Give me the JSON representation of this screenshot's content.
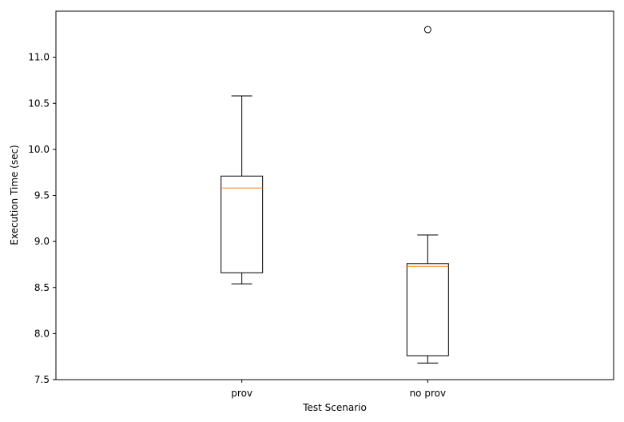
{
  "chart_data": {
    "type": "boxplot",
    "xlabel": "Test Scenario",
    "ylabel": "Execution Time (sec)",
    "ylim": [
      7.5,
      11.5
    ],
    "yticks": [
      "7.5",
      "8.0",
      "8.5",
      "9.0",
      "9.5",
      "10.0",
      "10.5",
      "11.0"
    ],
    "ytick_values": [
      7.5,
      8.0,
      8.5,
      9.0,
      9.5,
      10.0,
      10.5,
      11.0
    ],
    "categories": [
      "prov",
      "no prov"
    ],
    "boxes": [
      {
        "category": "prov",
        "whisker_low": 8.54,
        "q1": 8.66,
        "median": 9.58,
        "q3": 9.71,
        "whisker_high": 10.58,
        "outliers": []
      },
      {
        "category": "no prov",
        "whisker_low": 7.68,
        "q1": 7.76,
        "median": 8.73,
        "q3": 8.76,
        "whisker_high": 9.07,
        "outliers": [
          11.3
        ]
      }
    ],
    "grid": false,
    "colors": {
      "box": "#000000",
      "median": "#ff7f0e",
      "outlier": "#000000"
    }
  }
}
